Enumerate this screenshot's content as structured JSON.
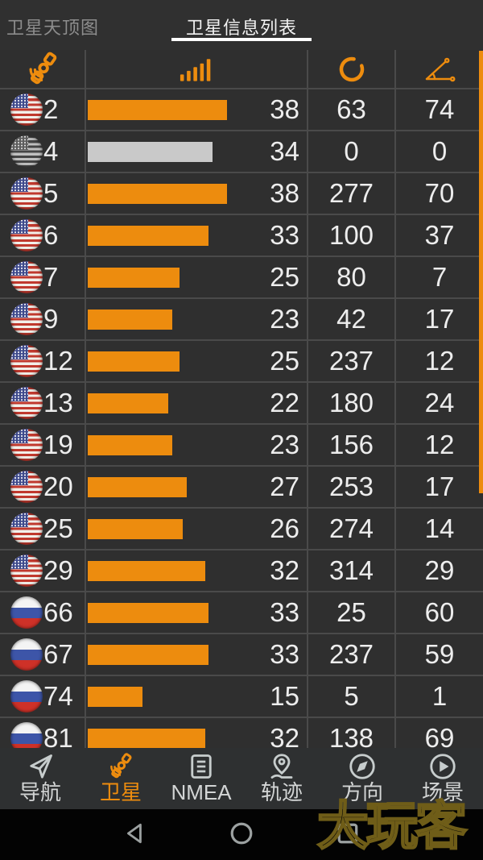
{
  "colors": {
    "accent": "#ed8c0e",
    "inactive_bar": "#c9c9c9",
    "background": "#2f2f2f",
    "grid_line": "#4a4a4a",
    "text": "#ededed",
    "watermark": "#6f5d18"
  },
  "tabs": {
    "left_label": "卫星天顶图",
    "active_label": "卫星信息列表"
  },
  "table": {
    "column_icons": [
      "satellite-icon",
      "signal-strength-icon",
      "azimuth-icon",
      "elevation-angle-icon"
    ],
    "rows": [
      {
        "flag": "us",
        "prn": "2",
        "snr": 38,
        "azimuth": "63",
        "elevation": "74",
        "inactive": false
      },
      {
        "flag": "us-gray",
        "prn": "4",
        "snr": 34,
        "azimuth": "0",
        "elevation": "0",
        "inactive": true
      },
      {
        "flag": "us",
        "prn": "5",
        "snr": 38,
        "azimuth": "277",
        "elevation": "70",
        "inactive": false
      },
      {
        "flag": "us",
        "prn": "6",
        "snr": 33,
        "azimuth": "100",
        "elevation": "37",
        "inactive": false
      },
      {
        "flag": "us",
        "prn": "7",
        "snr": 25,
        "azimuth": "80",
        "elevation": "7",
        "inactive": false
      },
      {
        "flag": "us",
        "prn": "9",
        "snr": 23,
        "azimuth": "42",
        "elevation": "17",
        "inactive": false
      },
      {
        "flag": "us",
        "prn": "12",
        "snr": 25,
        "azimuth": "237",
        "elevation": "12",
        "inactive": false
      },
      {
        "flag": "us",
        "prn": "13",
        "snr": 22,
        "azimuth": "180",
        "elevation": "24",
        "inactive": false
      },
      {
        "flag": "us",
        "prn": "19",
        "snr": 23,
        "azimuth": "156",
        "elevation": "12",
        "inactive": false
      },
      {
        "flag": "us",
        "prn": "20",
        "snr": 27,
        "azimuth": "253",
        "elevation": "17",
        "inactive": false
      },
      {
        "flag": "us",
        "prn": "25",
        "snr": 26,
        "azimuth": "274",
        "elevation": "14",
        "inactive": false
      },
      {
        "flag": "us",
        "prn": "29",
        "snr": 32,
        "azimuth": "314",
        "elevation": "29",
        "inactive": false
      },
      {
        "flag": "ru",
        "prn": "66",
        "snr": 33,
        "azimuth": "25",
        "elevation": "60",
        "inactive": false
      },
      {
        "flag": "ru",
        "prn": "67",
        "snr": 33,
        "azimuth": "237",
        "elevation": "59",
        "inactive": false
      },
      {
        "flag": "ru",
        "prn": "74",
        "snr": 15,
        "azimuth": "5",
        "elevation": "1",
        "inactive": false
      },
      {
        "flag": "ru",
        "prn": "81",
        "snr": 32,
        "azimuth": "138",
        "elevation": "69",
        "inactive": false
      }
    ]
  },
  "bottom_nav": {
    "items": [
      {
        "label": "导航",
        "icon": "navigation-arrow-icon",
        "active": false
      },
      {
        "label": "卫星",
        "icon": "satellite-icon",
        "active": true
      },
      {
        "label": "NMEA",
        "icon": "document-list-icon",
        "active": false
      },
      {
        "label": "轨迹",
        "icon": "track-pin-icon",
        "active": false
      },
      {
        "label": "方向",
        "icon": "compass-icon",
        "active": false
      },
      {
        "label": "场景",
        "icon": "play-circle-icon",
        "active": false
      }
    ]
  },
  "android_nav": {
    "buttons": [
      "back",
      "home",
      "recents"
    ]
  },
  "watermark": "大玩客"
}
